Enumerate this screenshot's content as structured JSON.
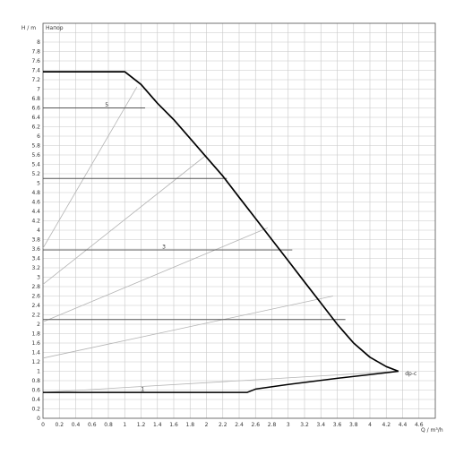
{
  "chart_data": {
    "type": "line",
    "title": "",
    "y_axis_label": "H / m",
    "y_axis_name": "Напор",
    "x_axis_label": "Q / m³/h",
    "xlim": [
      0,
      4.8
    ],
    "ylim": [
      0,
      8.4
    ],
    "grid": true,
    "x_ticks": [
      "0",
      "0.2",
      "0.4",
      "0.6",
      "0.8",
      "1",
      "1.2",
      "1.4",
      "1.6",
      "1.8",
      "2",
      "2.2",
      "2.4",
      "2.6",
      "2.8",
      "3",
      "3.2",
      "3.4",
      "3.6",
      "3.8",
      "4",
      "4.2",
      "4.4",
      "4.6"
    ],
    "y_ticks": [
      "0",
      "0.2",
      "0.4",
      "0.6",
      "0.8",
      "1",
      "1.2",
      "1.4",
      "1.6",
      "1.8",
      "2",
      "2.2",
      "2.4",
      "2.6",
      "2.8",
      "3",
      "3.2",
      "3.4",
      "3.6",
      "3.8",
      "4",
      "4.2",
      "4.4",
      "4.6",
      "4.8",
      "5",
      "5.2",
      "5.4",
      "5.6",
      "5.8",
      "6",
      "6.2",
      "6.4",
      "6.6",
      "6.8",
      "7",
      "7.2",
      "7.4",
      "7.6",
      "7.8",
      "8"
    ],
    "max_curve": {
      "points": [
        [
          0,
          7.37
        ],
        [
          1,
          7.37
        ],
        [
          1.2,
          7.1
        ],
        [
          1.4,
          6.7
        ],
        [
          1.6,
          6.35
        ],
        [
          1.8,
          5.95
        ],
        [
          2,
          5.55
        ],
        [
          2.2,
          5.15
        ],
        [
          2.4,
          4.7
        ],
        [
          2.6,
          4.25
        ],
        [
          2.8,
          3.8
        ],
        [
          3,
          3.35
        ],
        [
          3.2,
          2.9
        ],
        [
          3.4,
          2.45
        ],
        [
          3.6,
          2.0
        ],
        [
          3.8,
          1.6
        ],
        [
          4,
          1.3
        ],
        [
          4.2,
          1.1
        ],
        [
          4.35,
          1.0
        ]
      ]
    },
    "min_curve": {
      "points": [
        [
          0,
          0.55
        ],
        [
          2.5,
          0.55
        ],
        [
          2.6,
          0.62
        ],
        [
          3,
          0.72
        ],
        [
          3.6,
          0.85
        ],
        [
          4.0,
          0.93
        ],
        [
          4.35,
          1.0
        ]
      ]
    },
    "operating_lines": [
      {
        "label": "5",
        "y": 6.6,
        "x_end": 1.25,
        "label_x": 0.78
      },
      {
        "label": "",
        "y": 5.1,
        "x_end": 2.25,
        "label_x": null
      },
      {
        "label": "3",
        "y": 3.58,
        "x_end": 3.05,
        "label_x": 1.48
      },
      {
        "label": "",
        "y": 2.1,
        "x_end": 3.7,
        "label_x": null
      },
      {
        "label": "1",
        "y": 0.55,
        "x_end": 2.5,
        "label_x": 1.22
      }
    ],
    "system_curves": [
      {
        "points": [
          [
            0,
            3.62
          ],
          [
            1.15,
            7.05
          ]
        ]
      },
      {
        "points": [
          [
            0,
            2.85
          ],
          [
            2.0,
            5.6
          ]
        ]
      },
      {
        "points": [
          [
            0,
            2.05
          ],
          [
            2.75,
            4.05
          ]
        ]
      },
      {
        "points": [
          [
            0,
            1.28
          ],
          [
            3.55,
            2.6
          ]
        ]
      },
      {
        "points": [
          [
            0,
            0.55
          ],
          [
            4.35,
            1.0
          ]
        ]
      }
    ],
    "annotations": [
      {
        "text": "dp-c",
        "x": 4.43,
        "y": 0.95
      }
    ]
  }
}
